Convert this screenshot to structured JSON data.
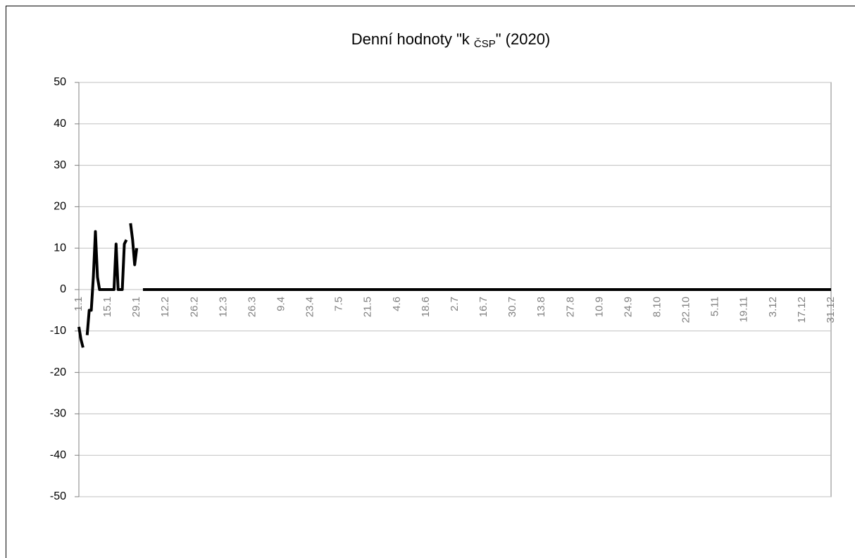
{
  "chart_data": {
    "type": "line",
    "title": [
      "Denní hodnoty \"k ",
      "ČSP",
      "\" (2020)"
    ],
    "categories": [
      "1.1",
      null,
      null,
      null,
      null,
      null,
      null,
      null,
      null,
      null,
      null,
      null,
      null,
      null,
      "15.1",
      null,
      null,
      null,
      null,
      null,
      null,
      null,
      null,
      null,
      null,
      null,
      null,
      null,
      "29.1",
      null,
      null,
      null,
      null,
      null,
      null,
      null,
      null,
      null,
      null,
      null,
      null,
      null,
      "12.2",
      null,
      null,
      null,
      null,
      null,
      null,
      null,
      null,
      null,
      null,
      null,
      null,
      null,
      "26.2",
      null,
      null,
      null,
      null,
      null,
      null,
      null,
      null,
      null,
      null,
      null,
      null,
      null,
      "12.3",
      null,
      null,
      null,
      null,
      null,
      null,
      null,
      null,
      null,
      null,
      null,
      null,
      null,
      "26.3",
      null,
      null,
      null,
      null,
      null,
      null,
      null,
      null,
      null,
      null,
      null,
      null,
      null,
      "9.4",
      null,
      null,
      null,
      null,
      null,
      null,
      null,
      null,
      null,
      null,
      null,
      null,
      null,
      "23.4",
      null,
      null,
      null,
      null,
      null,
      null,
      null,
      null,
      null,
      null,
      null,
      null,
      null,
      "7.5",
      null,
      null,
      null,
      null,
      null,
      null,
      null,
      null,
      null,
      null,
      null,
      null,
      null,
      "21.5",
      null,
      null,
      null,
      null,
      null,
      null,
      null,
      null,
      null,
      null,
      null,
      null,
      null,
      "4.6",
      null,
      null,
      null,
      null,
      null,
      null,
      null,
      null,
      null,
      null,
      null,
      null,
      null,
      "18.6",
      null,
      null,
      null,
      null,
      null,
      null,
      null,
      null,
      null,
      null,
      null,
      null,
      null,
      "2.7",
      null,
      null,
      null,
      null,
      null,
      null,
      null,
      null,
      null,
      null,
      null,
      null,
      null,
      "16.7",
      null,
      null,
      null,
      null,
      null,
      null,
      null,
      null,
      null,
      null,
      null,
      null,
      null,
      "30.7",
      null,
      null,
      null,
      null,
      null,
      null,
      null,
      null,
      null,
      null,
      null,
      null,
      null,
      "13.8",
      null,
      null,
      null,
      null,
      null,
      null,
      null,
      null,
      null,
      null,
      null,
      null,
      null,
      "27.8",
      null,
      null,
      null,
      null,
      null,
      null,
      null,
      null,
      null,
      null,
      null,
      null,
      null,
      "10.9",
      null,
      null,
      null,
      null,
      null,
      null,
      null,
      null,
      null,
      null,
      null,
      null,
      null,
      "24.9",
      null,
      null,
      null,
      null,
      null,
      null,
      null,
      null,
      null,
      null,
      null,
      null,
      null,
      "8.10",
      null,
      null,
      null,
      null,
      null,
      null,
      null,
      null,
      null,
      null,
      null,
      null,
      null,
      "22.10",
      null,
      null,
      null,
      null,
      null,
      null,
      null,
      null,
      null,
      null,
      null,
      null,
      null,
      "5.11",
      null,
      null,
      null,
      null,
      null,
      null,
      null,
      null,
      null,
      null,
      null,
      null,
      null,
      "19.11",
      null,
      null,
      null,
      null,
      null,
      null,
      null,
      null,
      null,
      null,
      null,
      null,
      null,
      "3.12",
      null,
      null,
      null,
      null,
      null,
      null,
      null,
      null,
      null,
      null,
      null,
      null,
      null,
      "17.12",
      null,
      null,
      null,
      null,
      null,
      null,
      null,
      null,
      null,
      null,
      null,
      null,
      null,
      "31.12"
    ],
    "series": [
      {
        "color": "#000000",
        "values": [
          -9,
          -12,
          -14,
          null,
          -11,
          -5,
          -5,
          3,
          14,
          3,
          0,
          0,
          0,
          0,
          0,
          0,
          0,
          0,
          11,
          0,
          0,
          0,
          11,
          12,
          null,
          16,
          12,
          6,
          10,
          null,
          null,
          0,
          0,
          0,
          0,
          0,
          0,
          0,
          0,
          0,
          0,
          0,
          0,
          0,
          0,
          0,
          0,
          0,
          0,
          0,
          0,
          0,
          0,
          0,
          0,
          0,
          0,
          0,
          0,
          0,
          0,
          0,
          0,
          0,
          0,
          0,
          0,
          0,
          0,
          0,
          0,
          0,
          0,
          0,
          0,
          0,
          0,
          0,
          0,
          0,
          0,
          0,
          0,
          0,
          0,
          0,
          0,
          0,
          0,
          0,
          0,
          0,
          0,
          0,
          0,
          0,
          0,
          0,
          0,
          0,
          0,
          0,
          0,
          0,
          0,
          0,
          0,
          0,
          0,
          0,
          0,
          0,
          0,
          0,
          0,
          0,
          0,
          0,
          0,
          0,
          0,
          0,
          0,
          0,
          0,
          0,
          0,
          0,
          0,
          0,
          0,
          0,
          0,
          0,
          0,
          0,
          0,
          0,
          0,
          0,
          0,
          0,
          0,
          0,
          0,
          0,
          0,
          0,
          0,
          0,
          0,
          0,
          0,
          0,
          0,
          0,
          0,
          0,
          0,
          0,
          0,
          0,
          0,
          0,
          0,
          0,
          0,
          0,
          0,
          0,
          0,
          0,
          0,
          0,
          0,
          0,
          0,
          0,
          0,
          0,
          0,
          0,
          0,
          0,
          0,
          0,
          0,
          0,
          0,
          0,
          0,
          0,
          0,
          0,
          0,
          0,
          0,
          0,
          0,
          0,
          0,
          0,
          0,
          0,
          0,
          0,
          0,
          0,
          0,
          0,
          0,
          0,
          0,
          0,
          0,
          0,
          0,
          0,
          0,
          0,
          0,
          0,
          0,
          0,
          0,
          0,
          0,
          0,
          0,
          0,
          0,
          0,
          0,
          0,
          0,
          0,
          0,
          0,
          0,
          0,
          0,
          0,
          0,
          0,
          0,
          0,
          0,
          0,
          0,
          0,
          0,
          0,
          0,
          0,
          0,
          0,
          0,
          0,
          0,
          0,
          0,
          0,
          0,
          0,
          0,
          0,
          0,
          0,
          0,
          0,
          0,
          0,
          0,
          0,
          0,
          0,
          0,
          0,
          0,
          0,
          0,
          0,
          0,
          0,
          0,
          0,
          0,
          0,
          0,
          0,
          0,
          0,
          0,
          0,
          0,
          0,
          0,
          0,
          0,
          0,
          0,
          0,
          0,
          0,
          0,
          0,
          0,
          0,
          0,
          0,
          0,
          0,
          0,
          0,
          0,
          0,
          0,
          0,
          0,
          0,
          0,
          0,
          0,
          0,
          0,
          0,
          0,
          0,
          0,
          0,
          0,
          0,
          0,
          0,
          0,
          0,
          0,
          0,
          0,
          0,
          0,
          0,
          0,
          0,
          0,
          0,
          0,
          0,
          0,
          0,
          0,
          0,
          0,
          0,
          0,
          0,
          0,
          0,
          0,
          0,
          0,
          0,
          0,
          0,
          0
        ]
      }
    ],
    "ylim": [
      -50,
      50
    ],
    "yticks": [
      -50,
      -40,
      -30,
      -20,
      -10,
      0,
      10,
      20,
      30,
      40,
      50
    ],
    "grid": true
  }
}
